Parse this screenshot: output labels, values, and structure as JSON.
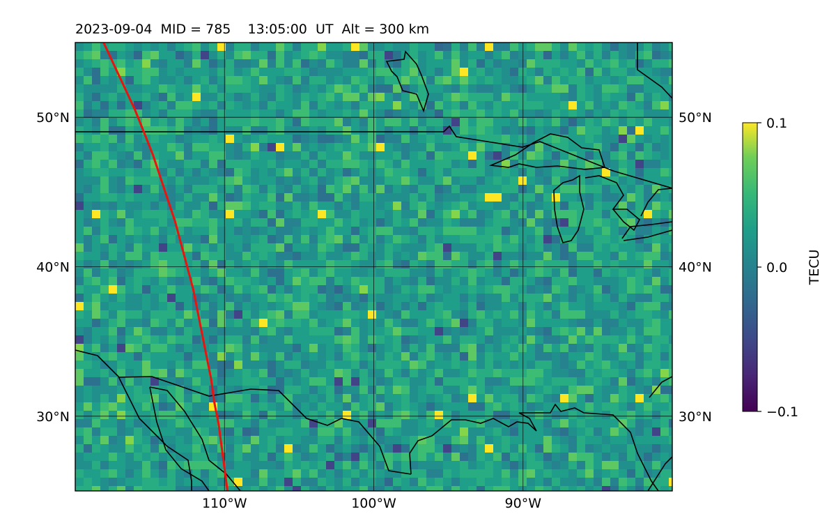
{
  "title": "2023-09-04  MID = 785    13:05:00  UT  Alt = 300 km",
  "map": {
    "lon_range": [
      -120,
      -80
    ],
    "lat_range": [
      25,
      55
    ],
    "lon_ticks": [
      {
        "value": -110,
        "label": "110°W"
      },
      {
        "value": -100,
        "label": "100°W"
      },
      {
        "value": -90,
        "label": "90°W"
      }
    ],
    "lat_ticks": [
      {
        "value": 50,
        "label": "50°N"
      },
      {
        "value": 40,
        "label": "40°N"
      },
      {
        "value": 30,
        "label": "30°N"
      }
    ],
    "grid": true,
    "track_color": "#e8140f",
    "track": [
      [
        -118.1,
        55
      ],
      [
        -117.4,
        53.5
      ],
      [
        -116.7,
        52
      ],
      [
        -116.0,
        50.5
      ],
      [
        -115.4,
        49
      ],
      [
        -114.8,
        47.5
      ],
      [
        -114.3,
        46
      ],
      [
        -113.8,
        44.5
      ],
      [
        -113.3,
        43
      ],
      [
        -112.9,
        41.5
      ],
      [
        -112.5,
        40
      ],
      [
        -112.1,
        38.5
      ],
      [
        -111.8,
        37
      ],
      [
        -111.5,
        35.5
      ],
      [
        -111.2,
        34
      ],
      [
        -110.9,
        32.5
      ],
      [
        -110.7,
        31
      ],
      [
        -110.4,
        29.5
      ],
      [
        -110.2,
        28
      ],
      [
        -110.0,
        26.5
      ],
      [
        -109.8,
        25
      ]
    ]
  },
  "colorbar": {
    "label": "TECU",
    "min": -0.1,
    "max": 0.1,
    "ticks": [
      {
        "value": 0.1,
        "label": "0.1"
      },
      {
        "value": 0.0,
        "label": "0.0"
      },
      {
        "value": -0.1,
        "label": "−0.1"
      }
    ],
    "colormap": "viridis"
  }
}
